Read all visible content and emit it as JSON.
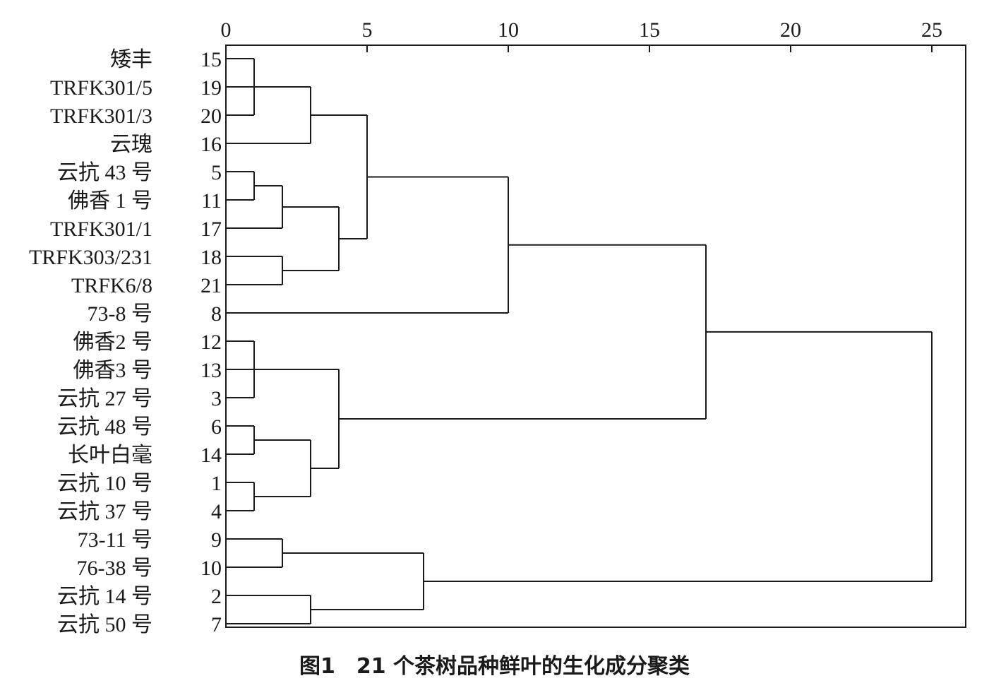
{
  "chart_data": {
    "type": "dendrogram",
    "title": "图1　21 个茶树品种鲜叶的生化成分聚类",
    "xlabel": "",
    "ylabel": "",
    "xlim": [
      0,
      26.2
    ],
    "x_ticks": [
      "0",
      "5",
      "10",
      "15",
      "20",
      "25"
    ],
    "x_tick_values": [
      0,
      5,
      10,
      15,
      20,
      25
    ],
    "grid": false,
    "leaves": [
      {
        "name": "矮丰",
        "id": "15"
      },
      {
        "name": "TRFK301/5",
        "id": "19"
      },
      {
        "name": "TRFK301/3",
        "id": "20"
      },
      {
        "name": "云瑰",
        "id": "16"
      },
      {
        "name": "云抗 43 号",
        "id": "5"
      },
      {
        "name": "佛香 1 号",
        "id": "11"
      },
      {
        "name": "TRFK301/1",
        "id": "17"
      },
      {
        "name": "TRFK303/231",
        "id": "18"
      },
      {
        "name": "TRFK6/8",
        "id": "21"
      },
      {
        "name": "73-8 号",
        "id": "8"
      },
      {
        "name": "佛香2 号",
        "id": "12"
      },
      {
        "name": "佛香3 号",
        "id": "13"
      },
      {
        "name": "云抗 27 号",
        "id": "3"
      },
      {
        "name": "云抗 48 号",
        "id": "6"
      },
      {
        "name": "长叶白毫",
        "id": "14"
      },
      {
        "name": "云抗 10 号",
        "id": "1"
      },
      {
        "name": "云抗 37 号",
        "id": "4"
      },
      {
        "name": "73-11 号",
        "id": "9"
      },
      {
        "name": "76-38 号",
        "id": "10"
      },
      {
        "name": "云抗 14 号",
        "id": "2"
      },
      {
        "name": "云抗 50 号",
        "id": "7"
      }
    ],
    "merges": [
      {
        "children": [
          0,
          1,
          2
        ],
        "distance": 1
      },
      {
        "children": [
          "m0",
          3
        ],
        "distance": 3
      },
      {
        "children": [
          4,
          5
        ],
        "distance": 1
      },
      {
        "children": [
          "m2",
          6
        ],
        "distance": 2
      },
      {
        "children": [
          7,
          8
        ],
        "distance": 2
      },
      {
        "children": [
          "m3",
          "m4"
        ],
        "distance": 4
      },
      {
        "children": [
          "m1",
          "m5"
        ],
        "distance": 5
      },
      {
        "children": [
          "m6",
          9
        ],
        "distance": 10
      },
      {
        "children": [
          10,
          11,
          12
        ],
        "distance": 1
      },
      {
        "children": [
          13,
          14
        ],
        "distance": 1
      },
      {
        "children": [
          15,
          16
        ],
        "distance": 1
      },
      {
        "children": [
          "m9",
          "m10"
        ],
        "distance": 3
      },
      {
        "children": [
          "m8",
          "m11"
        ],
        "distance": 4
      },
      {
        "children": [
          "m7",
          "m12"
        ],
        "distance": 17
      },
      {
        "children": [
          17,
          18
        ],
        "distance": 2
      },
      {
        "children": [
          19,
          20
        ],
        "distance": 3
      },
      {
        "children": [
          "m14",
          "m15"
        ],
        "distance": 7
      },
      {
        "children": [
          "m13",
          "m16"
        ],
        "distance": 25
      }
    ]
  }
}
